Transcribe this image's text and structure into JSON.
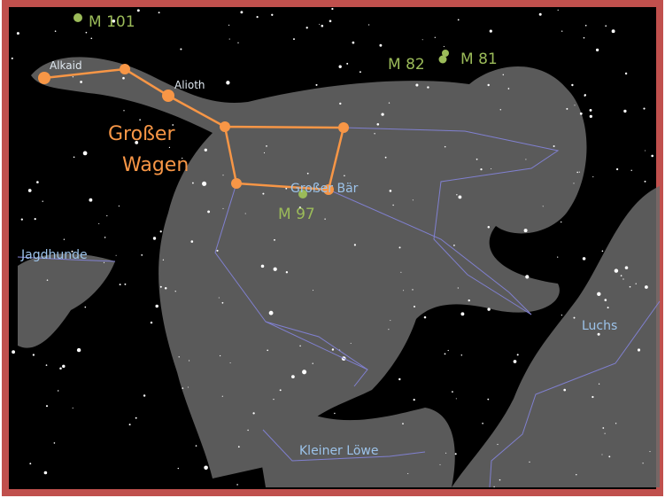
{
  "labels": {
    "m101": "M 101",
    "m82": "M 82",
    "m81": "M 81",
    "alkaid": "Alkaid",
    "alioth": "Alioth",
    "asterism": [
      "Großer",
      "Wagen"
    ],
    "ursa_major": "Großer Bär",
    "m97": "M 97",
    "canes": "Jagdhunde",
    "lynx": "Luchs",
    "leo_minor": "Kleiner Löwe"
  }
}
